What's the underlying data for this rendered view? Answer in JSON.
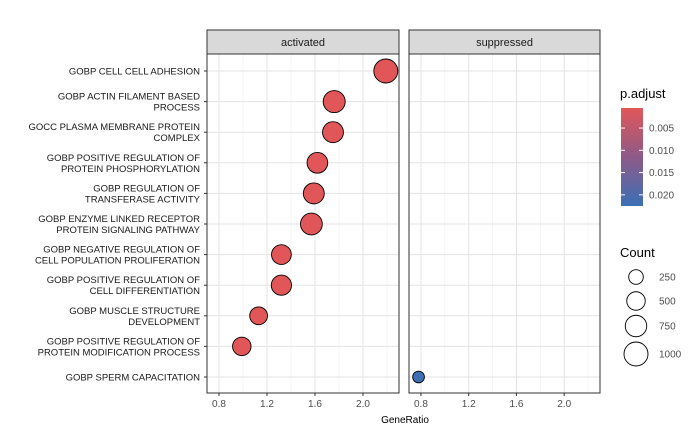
{
  "chart_data": {
    "type": "scatter",
    "facets": [
      "activated",
      "suppressed"
    ],
    "xlabel": "GeneRatio",
    "xlim": [
      0.7,
      2.3
    ],
    "x_ticks": [
      0.8,
      1.2,
      1.6,
      2.0
    ],
    "x_tick_labels": [
      "0.8",
      "1.2",
      "1.6",
      "2.0"
    ],
    "categories": [
      "GOBP CELL CELL ADHESION",
      "GOBP ACTIN FILAMENT BASED\nPROCESS",
      "GOCC PLASMA MEMBRANE PROTEIN\nCOMPLEX",
      "GOBP POSITIVE REGULATION OF\nPROTEIN PHOSPHORYLATION",
      "GOBP REGULATION OF\nTRANSFERASE ACTIVITY",
      "GOBP ENZYME LINKED RECEPTOR\nPROTEIN SIGNALING PATHWAY",
      "GOBP NEGATIVE REGULATION OF\nCELL POPULATION PROLIFERATION",
      "GOBP POSITIVE REGULATION OF\nCELL DIFFERENTIATION",
      "GOBP MUSCLE STRUCTURE\nDEVELOPMENT",
      "GOBP POSITIVE REGULATION OF\nPROTEIN MODIFICATION PROCESS",
      "GOBP SPERM CAPACITATION"
    ],
    "points": [
      {
        "facet": "activated",
        "category": 0,
        "gene_ratio": 2.19,
        "count": 1000,
        "p_adjust": 0.0005
      },
      {
        "facet": "activated",
        "category": 1,
        "gene_ratio": 1.76,
        "count": 800,
        "p_adjust": 0.0005
      },
      {
        "facet": "activated",
        "category": 2,
        "gene_ratio": 1.75,
        "count": 700,
        "p_adjust": 0.0005
      },
      {
        "facet": "activated",
        "category": 3,
        "gene_ratio": 1.62,
        "count": 680,
        "p_adjust": 0.0005
      },
      {
        "facet": "activated",
        "category": 4,
        "gene_ratio": 1.59,
        "count": 700,
        "p_adjust": 0.0005
      },
      {
        "facet": "activated",
        "category": 5,
        "gene_ratio": 1.57,
        "count": 780,
        "p_adjust": 0.0005
      },
      {
        "facet": "activated",
        "category": 6,
        "gene_ratio": 1.32,
        "count": 600,
        "p_adjust": 0.0005
      },
      {
        "facet": "activated",
        "category": 7,
        "gene_ratio": 1.32,
        "count": 640,
        "p_adjust": 0.0005
      },
      {
        "facet": "activated",
        "category": 8,
        "gene_ratio": 1.13,
        "count": 450,
        "p_adjust": 0.0005
      },
      {
        "facet": "activated",
        "category": 9,
        "gene_ratio": 0.99,
        "count": 500,
        "p_adjust": 0.0005
      },
      {
        "facet": "suppressed",
        "category": 10,
        "gene_ratio": 0.78,
        "count": 120,
        "p_adjust": 0.022
      }
    ],
    "legend_color": {
      "title": "p.adjust",
      "ticks": [
        0.005,
        0.01,
        0.015,
        0.02
      ],
      "tick_labels": [
        "0.005",
        "0.010",
        "0.015",
        "0.020"
      ],
      "range": [
        0.0005,
        0.0225
      ],
      "low_color": "#e15759",
      "high_color": "#3b6fb6"
    },
    "legend_size": {
      "title": "Count",
      "values": [
        250,
        500,
        750,
        1000
      ],
      "labels": [
        "250",
        "500",
        "750",
        "1000"
      ]
    },
    "grid": true
  }
}
